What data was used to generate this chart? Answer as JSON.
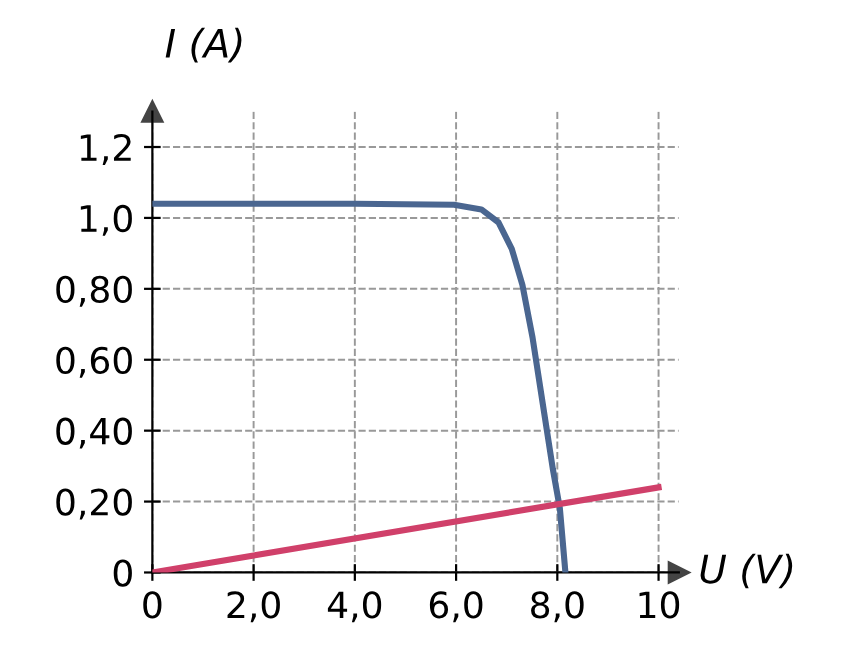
{
  "chart_data": {
    "type": "line",
    "xlabel": "U (V)",
    "ylabel": "I (A)",
    "xlim": [
      0,
      10.4
    ],
    "ylim": [
      0,
      1.3
    ],
    "xticks": [
      {
        "value": 0,
        "label": "0"
      },
      {
        "value": 2,
        "label": "2,0"
      },
      {
        "value": 4,
        "label": "4,0"
      },
      {
        "value": 6,
        "label": "6,0"
      },
      {
        "value": 8,
        "label": "8,0"
      },
      {
        "value": 10,
        "label": "10"
      }
    ],
    "yticks": [
      {
        "value": 0,
        "label": "0"
      },
      {
        "value": 0.2,
        "label": "0,20"
      },
      {
        "value": 0.4,
        "label": "0,40"
      },
      {
        "value": 0.6,
        "label": "0,60"
      },
      {
        "value": 0.8,
        "label": "0,80"
      },
      {
        "value": 1.0,
        "label": "1,0"
      },
      {
        "value": 1.2,
        "label": "1,2"
      }
    ],
    "grid": true,
    "line_style": "solid",
    "marker": "none",
    "series": [
      {
        "color": "#4a6690",
        "x": [
          0,
          2,
          4,
          5.96,
          6.5,
          6.84,
          7.1,
          7.31,
          7.51,
          7.71,
          7.91,
          8.05,
          8.16
        ],
        "values": [
          1.04,
          1.04,
          1.04,
          1.037,
          1.024,
          0.987,
          0.913,
          0.811,
          0.663,
          0.478,
          0.293,
          0.181,
          0
        ]
      },
      {
        "color": "#d0406a",
        "x": [
          0,
          10
        ],
        "values": [
          0,
          0.24
        ]
      }
    ]
  }
}
